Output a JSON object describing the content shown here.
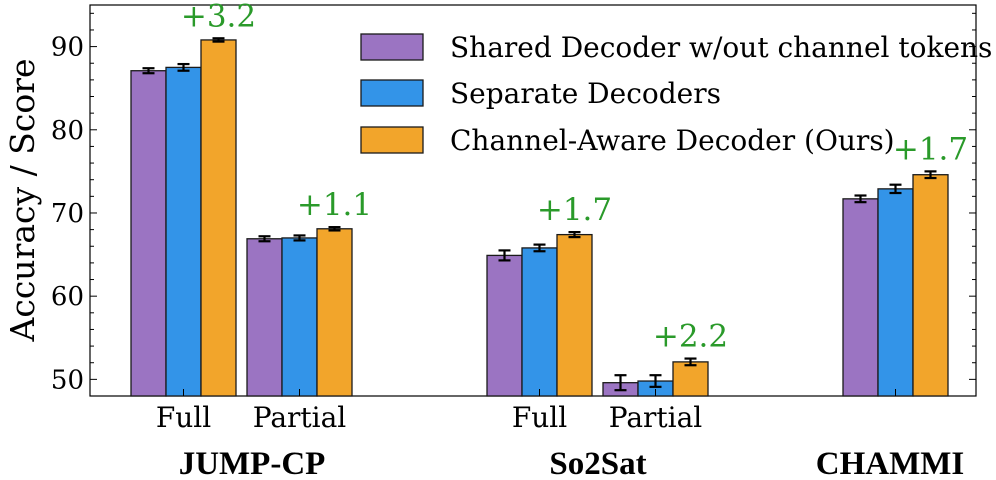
{
  "chart_data": {
    "type": "bar",
    "ylabel": "Accuracy / Score",
    "ylim": [
      48,
      95
    ],
    "yticks": [
      50,
      60,
      70,
      80,
      90
    ],
    "grid": false,
    "legend_position": "top-right",
    "series": [
      {
        "name": "Shared Decoder w/out channel tokens",
        "color": "#9b74c2"
      },
      {
        "name": "Separate Decoders",
        "color": "#3394e8"
      },
      {
        "name": "Channel-Aware Decoder (Ours)",
        "color": "#f2a52b"
      }
    ],
    "clusters": [
      {
        "group": "JUMP-CP",
        "label": "Full",
        "values": [
          87.1,
          87.5,
          90.8
        ],
        "errors": [
          0.3,
          0.4,
          0.2
        ],
        "annotation": "+3.2"
      },
      {
        "group": "JUMP-CP",
        "label": "Partial",
        "values": [
          66.9,
          67.0,
          68.1
        ],
        "errors": [
          0.3,
          0.3,
          0.2
        ],
        "annotation": "+1.1"
      },
      {
        "group": "So2Sat",
        "label": "Full",
        "values": [
          64.9,
          65.8,
          67.4
        ],
        "errors": [
          0.6,
          0.4,
          0.3
        ],
        "annotation": "+1.7"
      },
      {
        "group": "So2Sat",
        "label": "Partial",
        "values": [
          49.6,
          49.8,
          52.1
        ],
        "errors": [
          0.9,
          0.7,
          0.4
        ],
        "annotation": "+2.2"
      },
      {
        "group": "CHAMMI",
        "label": "",
        "values": [
          71.7,
          72.9,
          74.6
        ],
        "errors": [
          0.4,
          0.5,
          0.4
        ],
        "annotation": "+1.7"
      }
    ],
    "groups": [
      "JUMP-CP",
      "So2Sat",
      "CHAMMI"
    ],
    "annotation_color": "#2a9a2a"
  }
}
